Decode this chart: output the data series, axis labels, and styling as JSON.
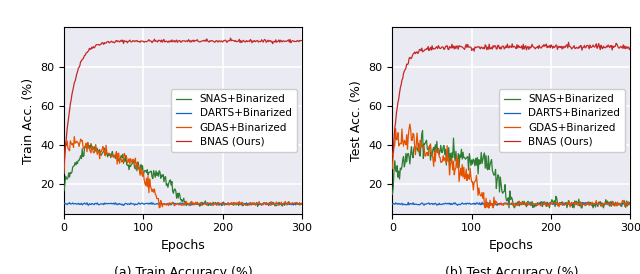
{
  "title_left": "(a) Train Accuracy (%)",
  "title_right": "(b) Test Accuracy (%)",
  "xlabel": "Epochs",
  "ylabel_left": "Train Acc. (%)",
  "ylabel_right": "Test Acc. (%)",
  "xlim": [
    0,
    300
  ],
  "ylim": [
    5,
    100
  ],
  "yticks": [
    20,
    40,
    60,
    80
  ],
  "xticks": [
    0,
    100,
    200,
    300
  ],
  "legend_labels": [
    "SNAS+Binarized",
    "DARTS+Binarized",
    "GDAS+Binarized",
    "BNAS (Ours)"
  ],
  "colors": {
    "SNAS": "#2e7d32",
    "DARTS": "#1565c0",
    "GDAS": "#e65100",
    "BNAS": "#c62828"
  },
  "background_color": "#eaeaf2",
  "grid_color": "white",
  "seed": 42
}
